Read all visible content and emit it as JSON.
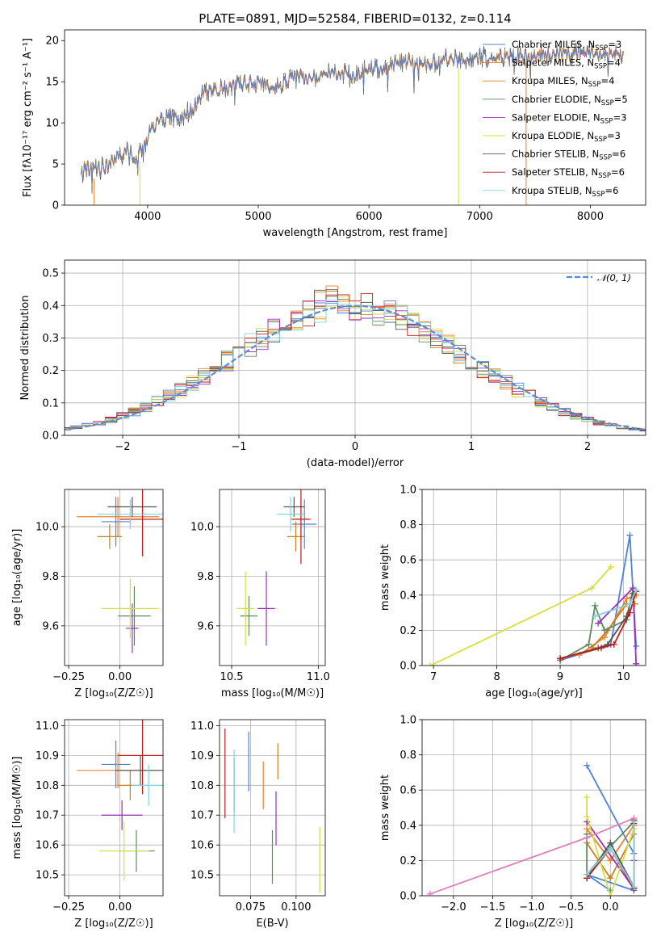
{
  "figure": {
    "title": "PLATE=0891, MJD=52584, FIBERID=0132, z=0.114"
  },
  "models": [
    {
      "name": "Chabrier MILES",
      "nssp": 3,
      "color": "#4f82d8"
    },
    {
      "name": "Salpeter MILES",
      "nssp": 4,
      "color": "#ef7f2e"
    },
    {
      "name": "Kroupa MILES",
      "nssp": 4,
      "color": "#c8801c"
    },
    {
      "name": "Chabrier ELODIE",
      "nssp": 5,
      "color": "#5f8a5f"
    },
    {
      "name": "Salpeter ELODIE",
      "nssp": 3,
      "color": "#9a2fbf"
    },
    {
      "name": "Kroupa ELODIE",
      "nssp": 3,
      "color": "#d8df3d"
    },
    {
      "name": "Chabrier STELIB",
      "nssp": 6,
      "color": "#555555"
    },
    {
      "name": "Salpeter STELIB",
      "nssp": 6,
      "color": "#c41a1a"
    },
    {
      "name": "Kroupa STELIB",
      "nssp": 6,
      "color": "#7fd3dc"
    }
  ],
  "chart_data": [
    {
      "id": "spectrum",
      "type": "line",
      "xlabel": "wavelength [Angstrom, rest frame]",
      "ylabel": "Flux [fλ10⁻¹⁷ erg cm⁻² s⁻¹ A⁻¹]",
      "xlim": [
        3250,
        8500
      ],
      "ylim": [
        0,
        21.3
      ],
      "xticks": [
        4000,
        5000,
        6000,
        7000,
        8000
      ],
      "yticks": [
        0,
        5,
        10,
        15,
        20
      ],
      "x": [
        3400,
        3500,
        3600,
        3700,
        3800,
        3900,
        4000,
        4100,
        4200,
        4300,
        4400,
        4500,
        4600,
        4700,
        4800,
        4900,
        5000,
        5100,
        5200,
        5300,
        5400,
        5500,
        5600,
        5700,
        5800,
        5900,
        6000,
        6100,
        6200,
        6300,
        6400,
        6500,
        6600,
        6700,
        6800,
        6900,
        7000,
        7100,
        7200,
        7300,
        7400,
        7500,
        7600,
        7700,
        7800,
        7900,
        8000,
        8100,
        8200,
        8300
      ],
      "flux": [
        4.4,
        4.2,
        4.6,
        5.6,
        6.5,
        5.5,
        8.3,
        10.2,
        10.8,
        10.5,
        11.8,
        13.4,
        14.1,
        13.9,
        14.6,
        14.8,
        15.0,
        14.3,
        14.6,
        15.3,
        15.6,
        15.4,
        15.9,
        16.1,
        16.2,
        15.8,
        16.9,
        16.8,
        17.1,
        17.4,
        17.3,
        17.2,
        17.5,
        17.7,
        17.6,
        17.8,
        17.9,
        18.0,
        18.1,
        18.0,
        18.3,
        18.3,
        18.2,
        18.5,
        18.4,
        18.5,
        18.4,
        18.3,
        18.6,
        18.3
      ],
      "legend_location": "upper right",
      "grid": false
    },
    {
      "id": "residuals",
      "type": "histogram",
      "xlabel": "(data-model)/error",
      "ylabel": "Normed distribution",
      "xlim": [
        -2.5,
        2.5
      ],
      "ylim": [
        0,
        0.54
      ],
      "xticks": [
        -2,
        -1,
        0,
        1,
        2
      ],
      "yticks": [
        0.0,
        0.1,
        0.2,
        0.3,
        0.4,
        0.5
      ],
      "bin_width": 0.1,
      "reference_curve": {
        "name": "𝒩(0, 1)",
        "mean": 0,
        "sigma": 1,
        "color": "#5b8bd6",
        "style": "dashed"
      },
      "legend_location": "upper right",
      "grid": true
    },
    {
      "id": "age-vs-metallicity",
      "type": "errorbar",
      "xlabel": "Z [log₁₀(Z/Z☉)]",
      "ylabel": "age  [log₁₀(age/yr)]",
      "xlim": [
        -0.27,
        0.21
      ],
      "ylim": [
        9.44,
        10.15
      ],
      "xticks": [
        -0.25,
        0.0
      ],
      "yticks": [
        9.6,
        9.8,
        10.0
      ],
      "points": [
        {
          "x": -0.02,
          "y": 10.02,
          "xerr": 0.07,
          "yerr": 0.1
        },
        {
          "x": -0.01,
          "y": 10.04,
          "xerr": 0.2,
          "yerr": 0.08
        },
        {
          "x": -0.05,
          "y": 9.96,
          "xerr": 0.06,
          "yerr": 0.05
        },
        {
          "x": 0.07,
          "y": 9.64,
          "xerr": 0.08,
          "yerr": 0.12
        },
        {
          "x": 0.06,
          "y": 9.59,
          "xerr": 0.03,
          "yerr": 0.1
        },
        {
          "x": 0.05,
          "y": 9.67,
          "xerr": 0.14,
          "yerr": 0.12
        },
        {
          "x": 0.06,
          "y": 10.08,
          "xerr": 0.12,
          "yerr": 0.04
        },
        {
          "x": 0.11,
          "y": 10.03,
          "xerr": 0.11,
          "yerr": 0.15
        },
        {
          "x": 0.05,
          "y": 10.05,
          "xerr": 0.16,
          "yerr": 0.06
        }
      ],
      "grid": true
    },
    {
      "id": "age-vs-mass",
      "type": "errorbar",
      "xlabel": "mass [log₁₀(M/M☉)]",
      "ylabel": "",
      "xlim": [
        10.43,
        11.04
      ],
      "ylim": [
        9.44,
        10.15
      ],
      "xticks": [
        10.5,
        11.0
      ],
      "yticks": [
        9.6,
        9.8,
        10.0
      ],
      "points": [
        {
          "x": 10.92,
          "y": 10.01,
          "xerr": 0.07,
          "yerr": 0.1
        },
        {
          "x": 10.9,
          "y": 10.03,
          "xerr": 0.06,
          "yerr": 0.08
        },
        {
          "x": 10.87,
          "y": 9.96,
          "xerr": 0.05,
          "yerr": 0.06
        },
        {
          "x": 10.6,
          "y": 9.64,
          "xerr": 0.05,
          "yerr": 0.08
        },
        {
          "x": 10.7,
          "y": 9.67,
          "xerr": 0.05,
          "yerr": 0.15
        },
        {
          "x": 10.58,
          "y": 9.67,
          "xerr": 0.05,
          "yerr": 0.15
        },
        {
          "x": 10.86,
          "y": 10.08,
          "xerr": 0.06,
          "yerr": 0.04
        },
        {
          "x": 10.9,
          "y": 10.03,
          "xerr": 0.05,
          "yerr": 0.18
        },
        {
          "x": 10.84,
          "y": 10.05,
          "xerr": 0.08,
          "yerr": 0.07
        }
      ],
      "grid": true
    },
    {
      "id": "weight-vs-age",
      "type": "line",
      "xlabel": "age  [log₁₀(age/yr)]",
      "ylabel": "mass weight",
      "xlim": [
        6.82,
        10.35
      ],
      "ylim": [
        0.0,
        1.0
      ],
      "xticks": [
        7,
        8,
        9,
        10
      ],
      "yticks": [
        0.0,
        0.2,
        0.4,
        0.6,
        0.8,
        1.0
      ],
      "series": [
        {
          "points": [
            [
              9.0,
              0.03
            ],
            [
              9.8,
              0.12
            ],
            [
              10.1,
              0.74
            ],
            [
              10.2,
              0.11
            ]
          ]
        },
        {
          "points": [
            [
              9.3,
              0.06
            ],
            [
              9.7,
              0.16
            ],
            [
              10.05,
              0.38
            ],
            [
              10.2,
              0.4
            ]
          ]
        },
        {
          "points": [
            [
              9.5,
              0.1
            ],
            [
              9.75,
              0.2
            ],
            [
              10.05,
              0.35
            ],
            [
              10.18,
              0.35
            ]
          ]
        },
        {
          "points": [
            [
              9.0,
              0.03
            ],
            [
              9.45,
              0.12
            ],
            [
              9.55,
              0.34
            ],
            [
              9.7,
              0.2
            ],
            [
              10.05,
              0.26
            ],
            [
              10.15,
              0.43
            ]
          ]
        },
        {
          "points": [
            [
              9.6,
              0.24
            ],
            [
              10.15,
              0.44
            ],
            [
              10.2,
              0.01
            ]
          ]
        },
        {
          "points": [
            [
              6.95,
              0.0
            ],
            [
              9.5,
              0.44
            ],
            [
              9.8,
              0.56
            ]
          ]
        },
        {
          "points": [
            [
              9.0,
              0.04
            ],
            [
              9.6,
              0.1
            ],
            [
              9.75,
              0.12
            ],
            [
              10.05,
              0.28
            ],
            [
              10.15,
              0.41
            ]
          ]
        },
        {
          "points": [
            [
              9.0,
              0.04
            ],
            [
              9.65,
              0.1
            ],
            [
              9.85,
              0.12
            ],
            [
              10.1,
              0.3
            ],
            [
              10.2,
              0.42
            ]
          ]
        },
        {
          "points": [
            [
              9.55,
              0.28
            ],
            [
              10.1,
              0.35
            ],
            [
              10.2,
              0.43
            ]
          ]
        }
      ],
      "grid": true
    },
    {
      "id": "mass-vs-metallicity",
      "type": "errorbar",
      "xlabel": "Z [log₁₀(Z/Z☉)]",
      "ylabel": "mass [log₁₀(M/M☉)]",
      "xlim": [
        -0.27,
        0.21
      ],
      "ylim": [
        10.43,
        11.02
      ],
      "xticks": [
        -0.25,
        0.0
      ],
      "yticks": [
        10.5,
        10.6,
        10.7,
        10.8,
        10.9,
        11.0
      ],
      "points": [
        {
          "x": -0.02,
          "y": 10.87,
          "xerr": 0.07,
          "yerr": 0.08
        },
        {
          "x": -0.01,
          "y": 10.85,
          "xerr": 0.2,
          "yerr": 0.06
        },
        {
          "x": 0.05,
          "y": 10.8,
          "xerr": 0.06,
          "yerr": 0.05
        },
        {
          "x": 0.08,
          "y": 10.58,
          "xerr": 0.09,
          "yerr": 0.07
        },
        {
          "x": 0.01,
          "y": 10.7,
          "xerr": 0.1,
          "yerr": 0.05
        },
        {
          "x": 0.02,
          "y": 10.58,
          "xerr": 0.12,
          "yerr": 0.1
        },
        {
          "x": 0.1,
          "y": 10.85,
          "xerr": 0.12,
          "yerr": 0.05
        },
        {
          "x": 0.11,
          "y": 10.9,
          "xerr": 0.12,
          "yerr": 0.13
        },
        {
          "x": 0.14,
          "y": 10.8,
          "xerr": 0.08,
          "yerr": 0.07
        }
      ],
      "grid": true
    },
    {
      "id": "mass-vs-extinction",
      "type": "errorbar",
      "xlabel": "E(B-V)",
      "ylabel": "",
      "xlim": [
        0.058,
        0.116
      ],
      "ylim": [
        10.43,
        11.02
      ],
      "xticks": [
        0.075,
        0.1
      ],
      "yticks": [
        10.5,
        10.6,
        10.7,
        10.8,
        10.9,
        11.0
      ],
      "points": [
        {
          "x": 0.074,
          "y": 10.88,
          "xerr": 0,
          "yerr": 0.1
        },
        {
          "x": 0.082,
          "y": 10.8,
          "xerr": 0,
          "yerr": 0.08
        },
        {
          "x": 0.09,
          "y": 10.88,
          "xerr": 0,
          "yerr": 0.06
        },
        {
          "x": 0.087,
          "y": 10.56,
          "xerr": 0,
          "yerr": 0.09
        },
        {
          "x": 0.089,
          "y": 10.69,
          "xerr": 0,
          "yerr": 0.09
        },
        {
          "x": 0.113,
          "y": 10.55,
          "xerr": 0,
          "yerr": 0.11
        },
        {
          "x": 0.066,
          "y": 10.8,
          "xerr": 0,
          "yerr": 0.09
        },
        {
          "x": 0.061,
          "y": 10.84,
          "xerr": 0,
          "yerr": 0.15
        },
        {
          "x": 0.066,
          "y": 10.78,
          "xerr": 0,
          "yerr": 0.14
        }
      ],
      "grid": true
    },
    {
      "id": "weight-vs-metallicity",
      "type": "line",
      "xlabel": "Z [log₁₀(Z/Z☉)]",
      "ylabel": "mass weight",
      "xlim": [
        -2.4,
        0.45
      ],
      "ylim": [
        0.0,
        1.0
      ],
      "xticks": [
        -2.0,
        -1.5,
        -1.0,
        -0.5,
        0.0
      ],
      "yticks": [
        0.0,
        0.2,
        0.4,
        0.6,
        0.8,
        1.0
      ],
      "series": [
        {
          "points": [
            [
              -0.3,
              0.74
            ],
            [
              0.3,
              0.24
            ],
            [
              0.3,
              0.03
            ],
            [
              -0.3,
              0.12
            ],
            [
              0.0,
              0.03
            ]
          ]
        },
        {
          "points": [
            [
              -0.3,
              0.38
            ],
            [
              0.0,
              0.2
            ],
            [
              0.3,
              0.4
            ]
          ]
        },
        {
          "points": [
            [
              -0.3,
              0.3
            ],
            [
              0.0,
              0.1
            ],
            [
              0.3,
              0.35
            ]
          ]
        },
        {
          "points": [
            [
              -0.3,
              0.35
            ],
            [
              -0.3,
              0.12
            ],
            [
              0.0,
              0.28
            ],
            [
              0.3,
              0.42
            ]
          ]
        },
        {
          "points": [
            [
              -0.3,
              0.42
            ],
            [
              0.3,
              0.04
            ],
            [
              0.3,
              0.2
            ]
          ]
        },
        {
          "points": [
            [
              -0.3,
              0.56
            ],
            [
              -0.3,
              0.45
            ],
            [
              0.0,
              0.0
            ],
            [
              0.3,
              0.38
            ]
          ]
        },
        {
          "points": [
            [
              -0.3,
              0.1
            ],
            [
              0.0,
              0.3
            ],
            [
              0.3,
              0.05
            ],
            [
              0.3,
              0.41
            ]
          ]
        },
        {
          "points": [
            [
              -0.3,
              0.1
            ],
            [
              0.0,
              0.27
            ],
            [
              0.3,
              0.04
            ],
            [
              0.3,
              0.43
            ]
          ]
        },
        {
          "points": [
            [
              -0.3,
              0.12
            ],
            [
              0.0,
              0.27
            ],
            [
              0.3,
              0.05
            ],
            [
              0.3,
              0.42
            ]
          ]
        },
        {
          "color": "#e27fbd",
          "points": [
            [
              -2.3,
              0.01
            ],
            [
              -0.3,
              0.33
            ],
            [
              0.3,
              0.44
            ]
          ]
        }
      ],
      "grid": true
    }
  ]
}
